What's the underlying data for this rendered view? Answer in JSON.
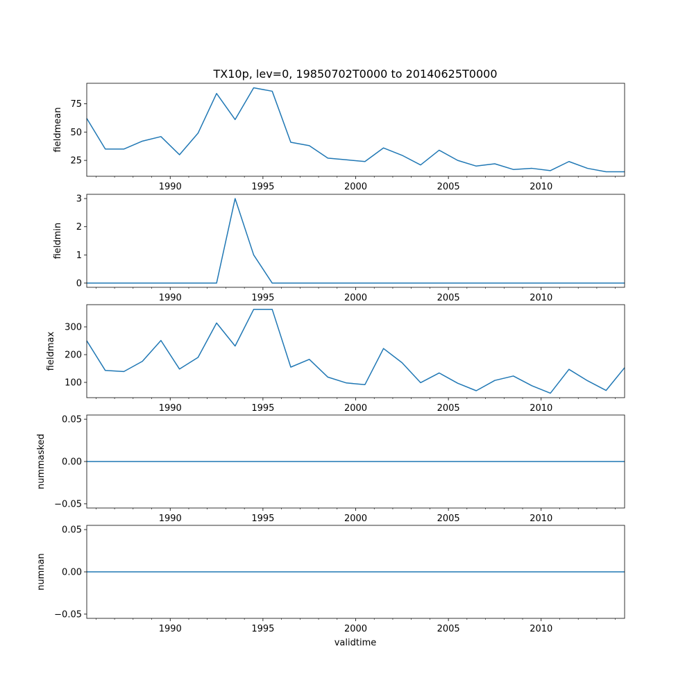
{
  "chart_data": {
    "type": "line",
    "title": "TX10p, lev=0, 19850702T0000 to 20140625T0000",
    "xlabel": "validtime",
    "x": [
      1985.5,
      1986.5,
      1987.5,
      1988.5,
      1989.5,
      1990.5,
      1991.5,
      1992.5,
      1993.5,
      1994.5,
      1995.5,
      1996.5,
      1997.5,
      1998.5,
      1999.5,
      2000.5,
      2001.5,
      2002.5,
      2003.5,
      2004.5,
      2005.5,
      2006.5,
      2007.5,
      2008.5,
      2009.5,
      2010.5,
      2011.5,
      2012.5,
      2013.5,
      2014.5
    ],
    "xlim": [
      1985.5,
      2014.5
    ],
    "x_ticks": [
      1990,
      1995,
      2000,
      2005,
      2010
    ],
    "x_tick_labels": [
      "1990",
      "1995",
      "2000",
      "2005",
      "2010"
    ],
    "panels": [
      {
        "ylabel": "fieldmean",
        "ylim": [
          11,
          93
        ],
        "y_ticks": [
          25,
          50,
          75
        ],
        "y_tick_labels": [
          "25",
          "50",
          "75"
        ],
        "values": [
          62,
          35,
          35,
          42,
          46,
          30,
          49,
          84,
          61,
          89,
          86,
          41,
          38,
          27,
          25.5,
          24,
          36,
          29.5,
          21,
          34,
          25,
          20,
          22,
          17,
          18,
          16,
          24,
          18,
          15,
          15
        ]
      },
      {
        "ylabel": "fieldmin",
        "ylim": [
          -0.15,
          3.15
        ],
        "y_ticks": [
          0,
          1,
          2,
          3
        ],
        "y_tick_labels": [
          "0",
          "1",
          "2",
          "3"
        ],
        "values": [
          0,
          0,
          0,
          0,
          0,
          0,
          0,
          0,
          3,
          1,
          0,
          0,
          0,
          0,
          0,
          0,
          0,
          0,
          0,
          0,
          0,
          0,
          0,
          0,
          0,
          0,
          0,
          0,
          0,
          0
        ]
      },
      {
        "ylabel": "fieldmax",
        "ylim": [
          45,
          380
        ],
        "y_ticks": [
          100,
          200,
          300
        ],
        "y_tick_labels": [
          "100",
          "200",
          "300"
        ],
        "values": [
          250,
          143,
          139,
          176,
          251,
          148,
          190,
          314,
          231,
          363,
          363,
          155,
          183,
          119,
          98,
          92,
          222,
          171,
          99,
          134,
          97,
          70,
          107,
          123,
          88,
          61,
          147,
          106,
          71,
          153
        ]
      },
      {
        "ylabel": "nummasked",
        "ylim": [
          -0.055,
          0.055
        ],
        "y_ticks": [
          -0.05,
          0,
          0.05
        ],
        "y_tick_labels": [
          "−0.05",
          "0.00",
          "0.05"
        ],
        "values": [
          0,
          0,
          0,
          0,
          0,
          0,
          0,
          0,
          0,
          0,
          0,
          0,
          0,
          0,
          0,
          0,
          0,
          0,
          0,
          0,
          0,
          0,
          0,
          0,
          0,
          0,
          0,
          0,
          0,
          0
        ]
      },
      {
        "ylabel": "numnan",
        "ylim": [
          -0.055,
          0.055
        ],
        "y_ticks": [
          -0.05,
          0,
          0.05
        ],
        "y_tick_labels": [
          "−0.05",
          "0.00",
          "0.05"
        ],
        "values": [
          0,
          0,
          0,
          0,
          0,
          0,
          0,
          0,
          0,
          0,
          0,
          0,
          0,
          0,
          0,
          0,
          0,
          0,
          0,
          0,
          0,
          0,
          0,
          0,
          0,
          0,
          0,
          0,
          0,
          0
        ]
      }
    ],
    "line_color": "#1f77b4",
    "grid": false,
    "legend": "none"
  }
}
